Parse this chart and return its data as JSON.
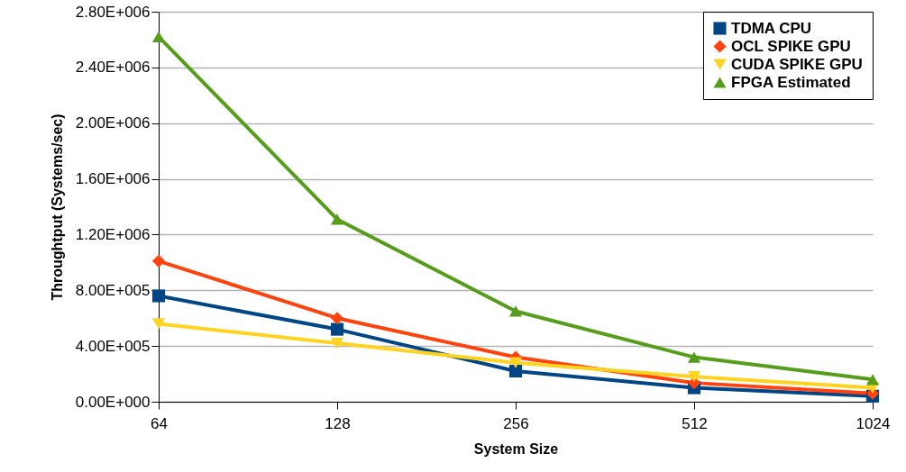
{
  "chart_data": {
    "type": "line",
    "xlabel": "System Size",
    "ylabel": "Throughtput (Systems/sec)",
    "categories": [
      "64",
      "128",
      "256",
      "512",
      "1024"
    ],
    "series": [
      {
        "name": "TDMA CPU",
        "color": "#004586",
        "marker": "square",
        "values": [
          760000,
          520000,
          220000,
          100000,
          40000
        ]
      },
      {
        "name": "OCL SPIKE GPU",
        "color": "#ff420e",
        "marker": "diamond",
        "values": [
          1010000,
          600000,
          320000,
          135000,
          60000
        ]
      },
      {
        "name": "CUDA SPIKE GPU",
        "color": "#ffd320",
        "marker": "triangle-down",
        "values": [
          560000,
          420000,
          280000,
          180000,
          100000
        ]
      },
      {
        "name": "FPGA Estimated",
        "color": "#579d1c",
        "marker": "triangle-up",
        "values": [
          2620000,
          1310000,
          650000,
          320000,
          160000
        ]
      }
    ],
    "ylim": [
      0,
      2800000
    ],
    "yticks": [
      {
        "value": 0,
        "label": "0.00E+000"
      },
      {
        "value": 400000,
        "label": "4.00E+005"
      },
      {
        "value": 800000,
        "label": "8.00E+005"
      },
      {
        "value": 1200000,
        "label": "1.20E+006"
      },
      {
        "value": 1600000,
        "label": "1.60E+006"
      },
      {
        "value": 2000000,
        "label": "2.00E+006"
      },
      {
        "value": 2400000,
        "label": "2.40E+006"
      },
      {
        "value": 2800000,
        "label": "2.80E+006"
      }
    ],
    "grid": "y",
    "legend": "top right",
    "line_style": "solid"
  }
}
